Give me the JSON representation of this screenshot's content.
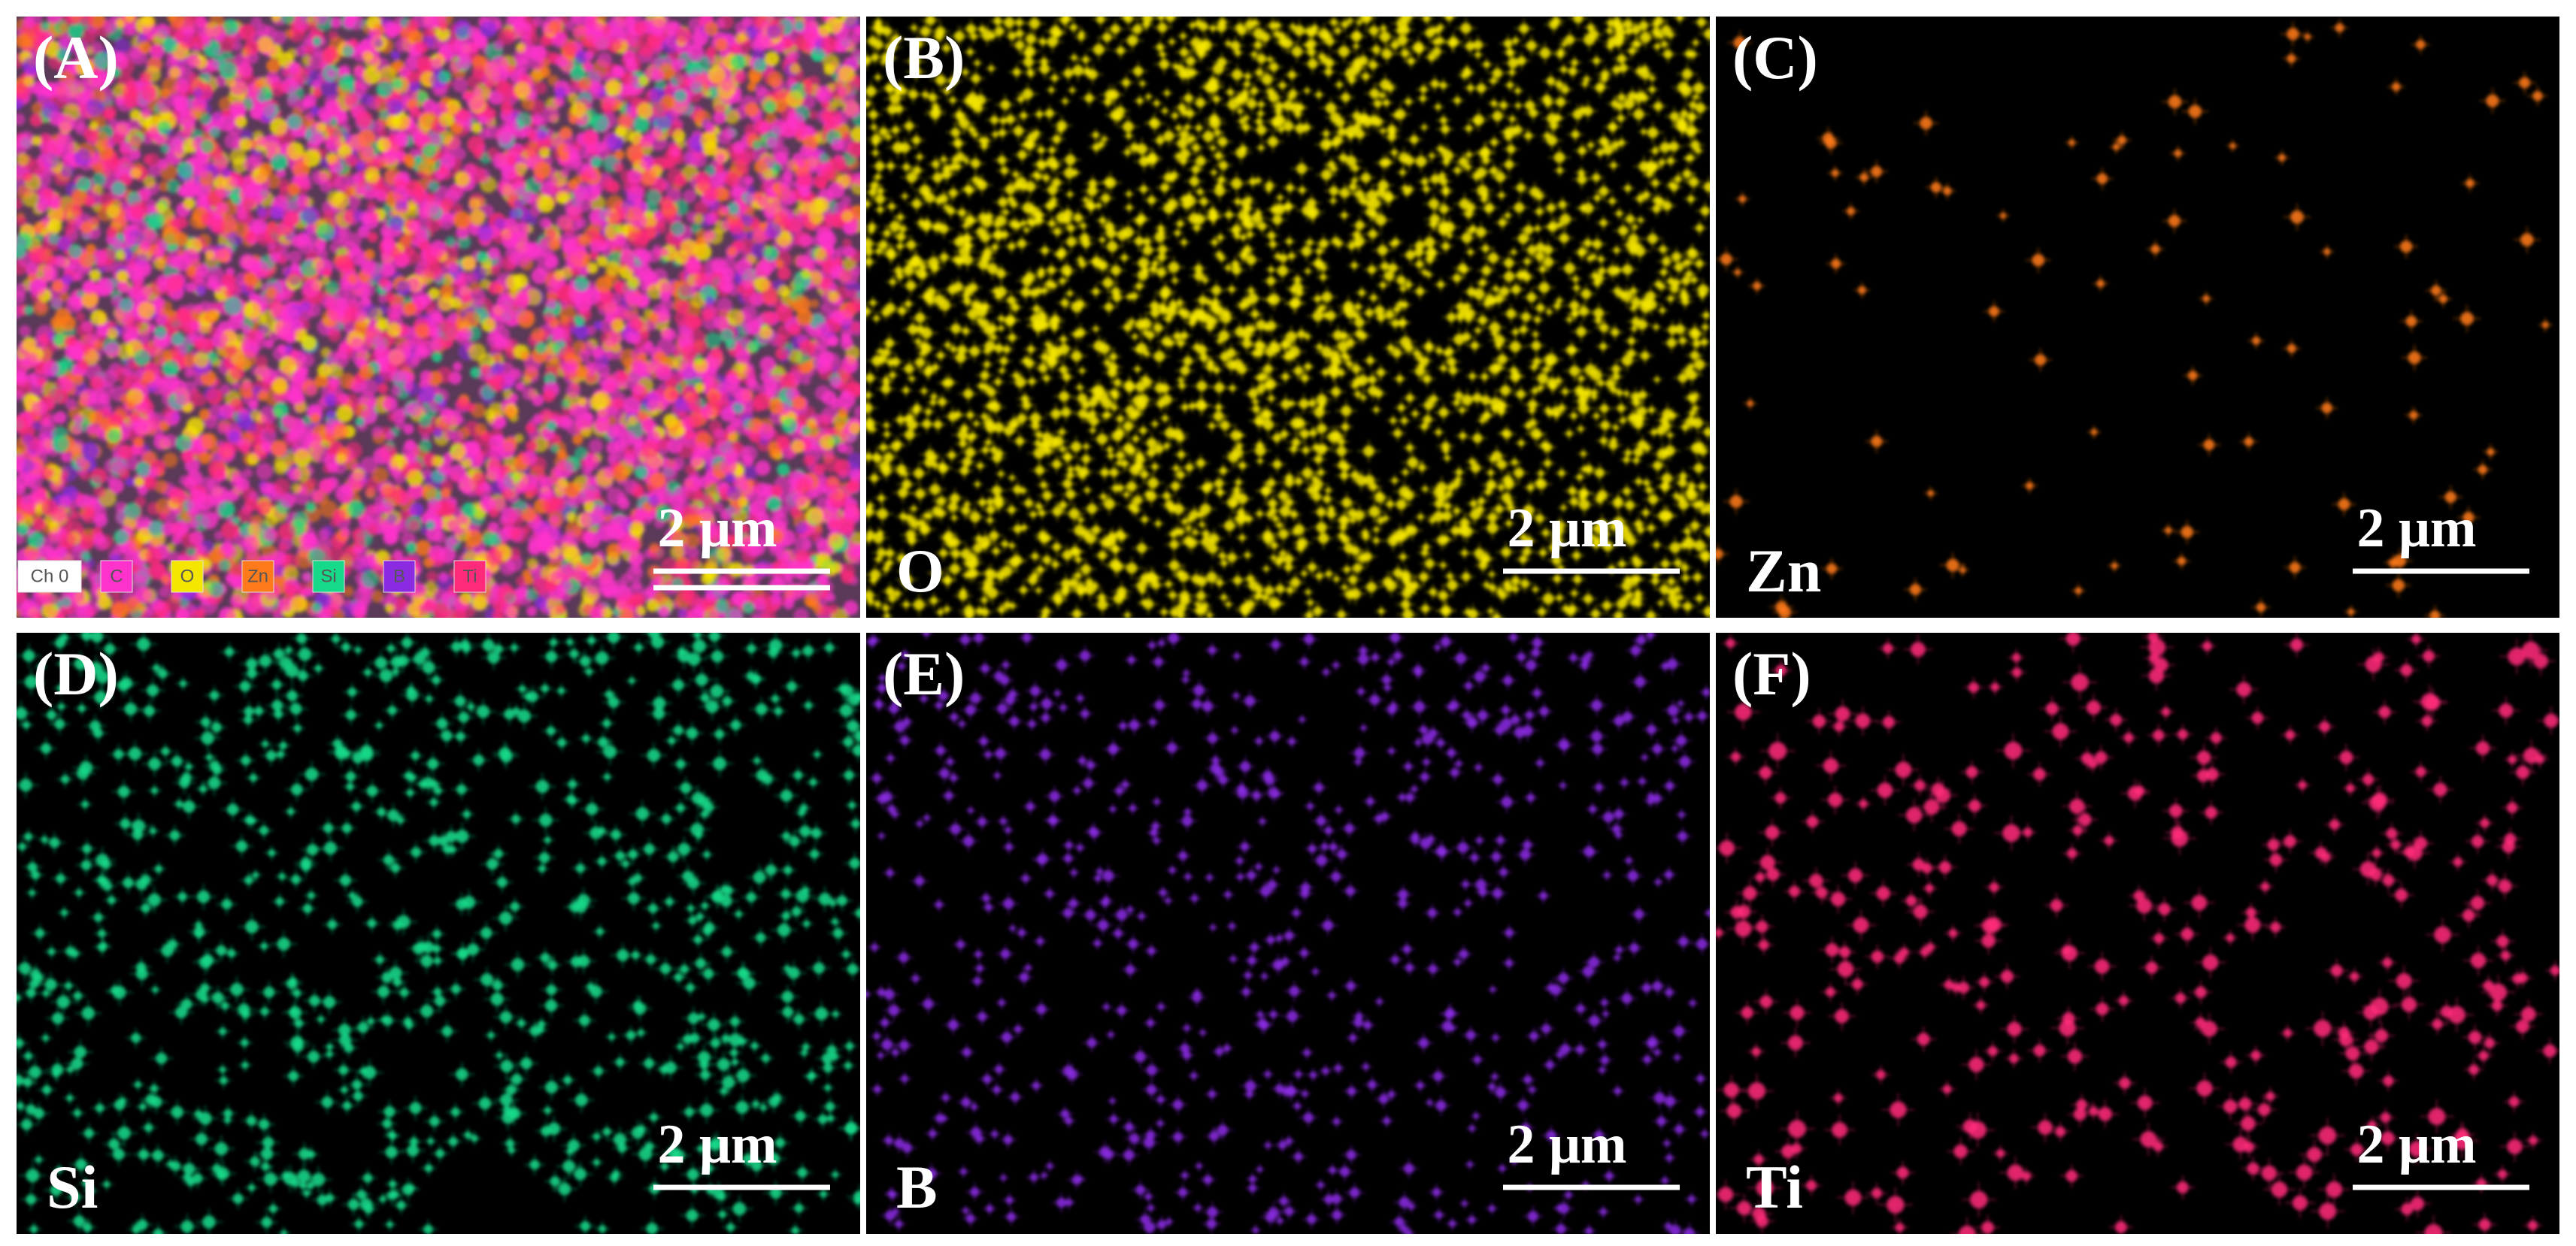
{
  "panels": [
    {
      "label": "(A)",
      "scale_bar": "2 μm",
      "legend": [
        {
          "text": "Ch 0",
          "color": "#ffffff"
        },
        {
          "text": "C",
          "color": "#ff33cc"
        },
        {
          "text": "O",
          "color": "#f5e600"
        },
        {
          "text": "Zn",
          "color": "#ff7a1a"
        },
        {
          "text": "Si",
          "color": "#17d98a"
        },
        {
          "text": "B",
          "color": "#8a2be2"
        },
        {
          "text": "Ti",
          "color": "#ff2a7a"
        }
      ]
    },
    {
      "label": "(B)",
      "element": "O",
      "scale_bar": "2 μm",
      "color": "#f5e600"
    },
    {
      "label": "(C)",
      "element": "Zn",
      "scale_bar": "2 μm",
      "color": "#ff7a1a"
    },
    {
      "label": "(D)",
      "element": "Si",
      "scale_bar": "2 μm",
      "color": "#17d98a"
    },
    {
      "label": "(E)",
      "element": "B",
      "scale_bar": "2 μm",
      "color": "#8a2be2"
    },
    {
      "label": "(F)",
      "element": "Ti",
      "scale_bar": "2 μm",
      "color": "#ff2a7a"
    }
  ]
}
